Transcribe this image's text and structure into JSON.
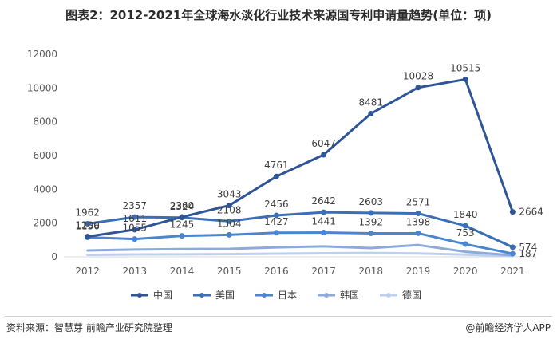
{
  "title": "图表2：2012-2021年全球海水淡化行业技术来源国专利申请量趋势(单位：项)",
  "footer": {
    "source": "资料来源：智慧芽 前瞻产业研究院整理",
    "brand": "@前瞻经济学人APP"
  },
  "chart_data": {
    "type": "line",
    "title": "图表2：2012-2021年全球海水淡化行业技术来源国专利申请量趋势(单位：项)",
    "xlabel": "",
    "ylabel": "",
    "x": [
      "2012",
      "2013",
      "2014",
      "2015",
      "2016",
      "2017",
      "2018",
      "2019",
      "2020",
      "2021"
    ],
    "ylim": [
      0,
      12000
    ],
    "yticks": [
      0,
      2000,
      4000,
      6000,
      8000,
      10000,
      12000
    ],
    "grid": false,
    "legend": "bottom",
    "series": [
      {
        "name": "中国",
        "color": "#2f5597",
        "values": [
          1200,
          1611,
          2360,
          3043,
          4761,
          6047,
          8481,
          10028,
          10515,
          2664
        ],
        "labels": [
          true,
          true,
          true,
          true,
          true,
          true,
          true,
          true,
          true,
          true
        ]
      },
      {
        "name": "美国",
        "color": "#3a6eb5",
        "values": [
          1962,
          2357,
          2324,
          2108,
          2456,
          2642,
          2603,
          2571,
          1840,
          574
        ],
        "labels": [
          true,
          true,
          true,
          true,
          true,
          true,
          true,
          true,
          true,
          true
        ]
      },
      {
        "name": "日本",
        "color": "#4a86d0",
        "values": [
          1156,
          1055,
          1245,
          1304,
          1427,
          1441,
          1392,
          1398,
          753,
          187
        ],
        "labels": [
          true,
          true,
          true,
          true,
          true,
          true,
          true,
          true,
          true,
          true
        ]
      },
      {
        "name": "韩国",
        "color": "#8eaadb",
        "values": [
          380,
          430,
          460,
          470,
          560,
          620,
          520,
          700,
          300,
          90
        ],
        "labels": [
          false,
          false,
          false,
          false,
          false,
          false,
          false,
          false,
          false,
          false
        ]
      },
      {
        "name": "德国",
        "color": "#bdd0ee",
        "values": [
          120,
          140,
          150,
          160,
          190,
          210,
          230,
          200,
          130,
          50
        ],
        "labels": [
          false,
          false,
          false,
          false,
          false,
          false,
          false,
          false,
          false,
          false
        ]
      }
    ]
  }
}
